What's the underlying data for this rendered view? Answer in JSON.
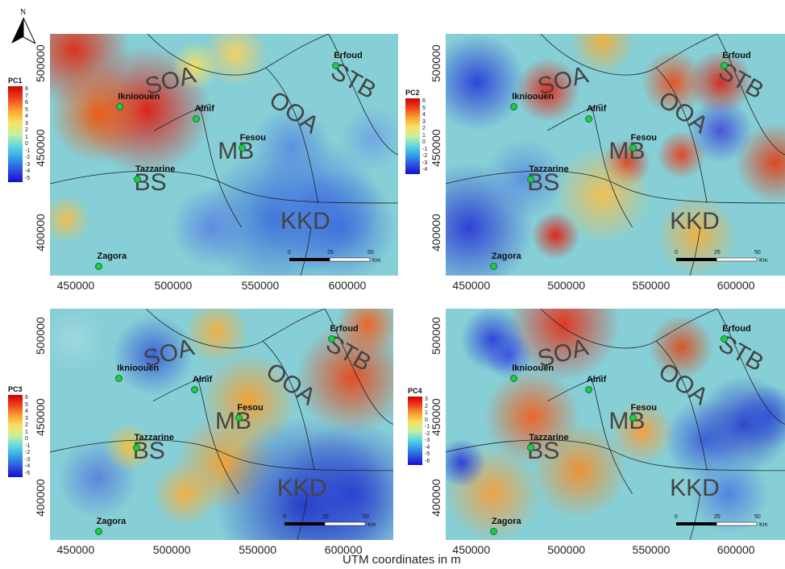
{
  "north_label": "N",
  "x_axis_label": "UTM coordinates in m",
  "panels": [
    {
      "legend_title": "PC1",
      "legend_ticks": [
        "8",
        "7",
        "6",
        "5",
        "4",
        "3",
        "2",
        "1",
        "0",
        "-1",
        "-2",
        "-3",
        "-4",
        "-5"
      ]
    },
    {
      "legend_title": "PC2",
      "legend_ticks": [
        "6",
        "5",
        "4",
        "3",
        "2",
        "1",
        "0",
        "-1",
        "-2",
        "-3",
        "-4"
      ]
    },
    {
      "legend_title": "PC3",
      "legend_ticks": [
        "6",
        "5",
        "4",
        "3",
        "2",
        "1",
        "0",
        "-1",
        "-2",
        "-3",
        "-4",
        "-5"
      ]
    },
    {
      "legend_title": "PC4",
      "legend_ticks": [
        "3",
        "2",
        "1",
        "0",
        "-1",
        "-2",
        "-3",
        "-4",
        "-5",
        "-6"
      ]
    }
  ],
  "zones": [
    "SOA",
    "STB",
    "OOA",
    "MB",
    "BS",
    "KKD"
  ],
  "cities": [
    "Erfoud",
    "Iknioouen",
    "Alnif",
    "Fesou",
    "Tazzarine",
    "Zagora"
  ],
  "city_labels": {
    "erfoud": "Erfoud",
    "iknioouen": "Iknioouen",
    "alnif": "Alnif",
    "fesou": "Fesou",
    "tazzarine": "Tazzarine",
    "zagora": "Zagora"
  },
  "x_ticks": [
    "450000",
    "500000",
    "550000",
    "600000"
  ],
  "y_ticks": [
    "500000",
    "450000",
    "400000"
  ],
  "scale": {
    "zero": "0",
    "mid": "25",
    "end": "50",
    "unit": "Km"
  }
}
